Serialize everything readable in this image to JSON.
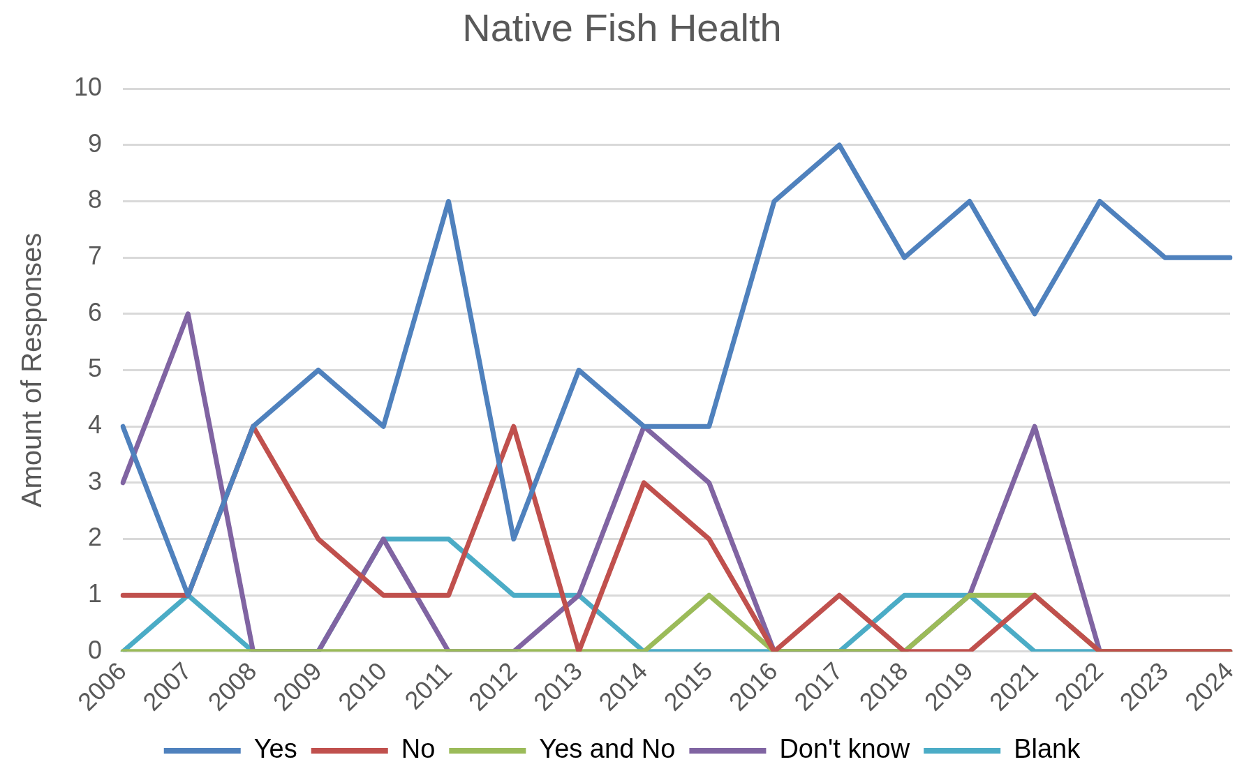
{
  "chart_data": {
    "type": "line",
    "title": "Native Fish Health",
    "ylabel": "Amount of Responses",
    "categories": [
      "2006",
      "2007",
      "2008",
      "2009",
      "2010",
      "2011",
      "2012",
      "2013",
      "2014",
      "2015",
      "2016",
      "2017",
      "2018",
      "2019",
      "2021",
      "2022",
      "2023",
      "2024"
    ],
    "ylim": [
      0,
      10
    ],
    "yticks": [
      0,
      1,
      2,
      3,
      4,
      5,
      6,
      7,
      8,
      9,
      10
    ],
    "grid": "y",
    "legend": "bottom",
    "marker": "none",
    "line_style": "solid",
    "series": [
      {
        "name": "Yes",
        "color": "#4f81bd",
        "values": [
          4,
          1,
          4,
          5,
          4,
          8,
          2,
          5,
          4,
          4,
          8,
          9,
          7,
          8,
          6,
          8,
          7,
          7
        ]
      },
      {
        "name": "No",
        "color": "#c0504d",
        "values": [
          1,
          1,
          4,
          2,
          1,
          1,
          4,
          0,
          3,
          2,
          0,
          1,
          0,
          0,
          1,
          0,
          0,
          0
        ]
      },
      {
        "name": "Yes and No",
        "color": "#9bbb59",
        "values": [
          0,
          0,
          0,
          0,
          0,
          0,
          0,
          0,
          0,
          1,
          0,
          0,
          0,
          1,
          1,
          0,
          0,
          0
        ]
      },
      {
        "name": "Don't know",
        "color": "#8064a2",
        "values": [
          3,
          6,
          0,
          0,
          2,
          0,
          0,
          1,
          4,
          3,
          0,
          0,
          0,
          1,
          4,
          0,
          0,
          0
        ]
      },
      {
        "name": "Blank",
        "color": "#4bacc6",
        "values": [
          0,
          1,
          0,
          0,
          2,
          2,
          1,
          1,
          0,
          0,
          0,
          0,
          1,
          1,
          0,
          0,
          0,
          0
        ]
      }
    ]
  }
}
